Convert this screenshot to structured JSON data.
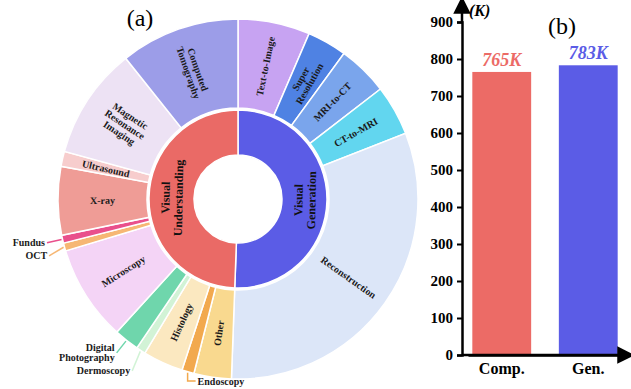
{
  "chart_data": [
    {
      "type": "sunburst",
      "title": "(a)",
      "categories": [
        "Visual Generation",
        "Visual Understanding"
      ],
      "values": [
        783,
        765
      ],
      "colors": [
        "#5b5ce6",
        "#ea6a66"
      ],
      "children": [
        {
          "categories": [
            "Text-to-Image",
            "Super Resolution",
            "MRI-to-CT",
            "CT-to-MRI",
            "Reconstruction"
          ],
          "values": [
            100,
            55,
            70,
            70,
            488
          ],
          "colors": [
            "#c7a3f2",
            "#4f82e3",
            "#7aa5ec",
            "#62d6ef",
            "#dce6f8"
          ]
        },
        {
          "categories": [
            "Other",
            "Endoscopy",
            "Histology",
            "Dermoscopy",
            "Digital Photography",
            "Microscopy",
            "OCT",
            "Fundus",
            "X-ray",
            "Ultrasound",
            "Magnetic Resonance Imaging",
            "Computed Tomography"
          ],
          "values": [
            52,
            17,
            56,
            13,
            35,
            133,
            11,
            11,
            95,
            21,
            155,
            166
          ],
          "colors": [
            "#f9d98f",
            "#f2a94e",
            "#fbe8c0",
            "#d2f3d6",
            "#6fd6ac",
            "#f4d4f6",
            "#f6b774",
            "#e9508c",
            "#ef9c96",
            "#f7cdcd",
            "#ede2f4",
            "#9c9de8"
          ]
        }
      ]
    },
    {
      "type": "bar",
      "title": "(b)",
      "ylabel": "(K)",
      "categories": [
        "Comp.",
        "Gen."
      ],
      "values": [
        765,
        783
      ],
      "value_labels": [
        "765K",
        "783K"
      ],
      "colors": [
        "#ec6b66",
        "#5b5ce6"
      ],
      "ylim": [
        0,
        900
      ],
      "yticks": [
        0,
        100,
        200,
        300,
        400,
        500,
        600,
        700,
        800,
        900
      ],
      "data_labels": true
    }
  ]
}
